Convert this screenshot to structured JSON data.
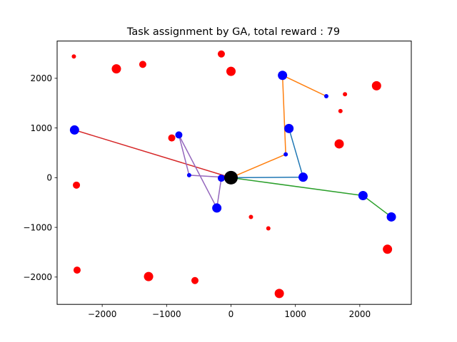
{
  "chart_data": {
    "type": "scatter",
    "title": "Task assignment by GA, total reward : 79",
    "xlabel": "",
    "ylabel": "",
    "xlim": [
      -2700,
      2800
    ],
    "ylim": [
      -2550,
      2750
    ],
    "x_ticks": [
      -2000,
      -1000,
      0,
      1000,
      2000
    ],
    "x_tick_labels": [
      "−2000",
      "−1000",
      "0",
      "1000",
      "2000"
    ],
    "y_ticks": [
      -2000,
      -1000,
      0,
      1000,
      2000
    ],
    "y_tick_labels": [
      "−2000",
      "−1000",
      "0",
      "1000",
      "2000"
    ],
    "grid": false,
    "legend": "none",
    "depot": {
      "x": 0,
      "y": 0,
      "color": "#000000",
      "size": "large"
    },
    "assigned_tasks": {
      "color": "#0000ff",
      "points": [
        {
          "x": 800,
          "y": 2060,
          "size": "large"
        },
        {
          "x": 1480,
          "y": 1640,
          "size": "small"
        },
        {
          "x": 900,
          "y": 990,
          "size": "large"
        },
        {
          "x": 1120,
          "y": 10,
          "size": "large"
        },
        {
          "x": 850,
          "y": 470,
          "size": "small"
        },
        {
          "x": -2430,
          "y": 960,
          "size": "large"
        },
        {
          "x": -810,
          "y": 860,
          "size": "medium"
        },
        {
          "x": -650,
          "y": 50,
          "size": "small"
        },
        {
          "x": -220,
          "y": -610,
          "size": "large"
        },
        {
          "x": -150,
          "y": -10,
          "size": "medium"
        },
        {
          "x": 2050,
          "y": -360,
          "size": "large"
        },
        {
          "x": 2490,
          "y": -790,
          "size": "large"
        }
      ]
    },
    "unassigned_tasks": {
      "color": "#ff0000",
      "points": [
        {
          "x": -2440,
          "y": 2440,
          "size": "small"
        },
        {
          "x": -1780,
          "y": 2190,
          "size": "large"
        },
        {
          "x": -1370,
          "y": 2280,
          "size": "medium"
        },
        {
          "x": -150,
          "y": 2490,
          "size": "medium"
        },
        {
          "x": 0,
          "y": 2140,
          "size": "large"
        },
        {
          "x": 1770,
          "y": 1680,
          "size": "small"
        },
        {
          "x": 2260,
          "y": 1850,
          "size": "large"
        },
        {
          "x": 1700,
          "y": 1340,
          "size": "small"
        },
        {
          "x": 1680,
          "y": 680,
          "size": "large"
        },
        {
          "x": -920,
          "y": 800,
          "size": "medium"
        },
        {
          "x": -2400,
          "y": -150,
          "size": "medium"
        },
        {
          "x": 310,
          "y": -790,
          "size": "small"
        },
        {
          "x": 580,
          "y": -1020,
          "size": "small"
        },
        {
          "x": 2430,
          "y": -1440,
          "size": "large"
        },
        {
          "x": -2390,
          "y": -1860,
          "size": "medium"
        },
        {
          "x": -1280,
          "y": -1990,
          "size": "large"
        },
        {
          "x": -560,
          "y": -2070,
          "size": "medium"
        },
        {
          "x": 750,
          "y": -2330,
          "size": "large"
        }
      ]
    },
    "series": [
      {
        "color": "#1f77b4",
        "x": [
          0,
          1120,
          900
        ],
        "y": [
          0,
          10,
          990
        ]
      },
      {
        "color": "#ff7f0e",
        "x": [
          0,
          850,
          800,
          1480
        ],
        "y": [
          0,
          470,
          2060,
          1640
        ]
      },
      {
        "color": "#2ca02c",
        "x": [
          0,
          2050,
          2490
        ],
        "y": [
          0,
          -360,
          -790
        ]
      },
      {
        "color": "#d62728",
        "x": [
          0,
          -2430
        ],
        "y": [
          0,
          960
        ]
      },
      {
        "color": "#9467bd",
        "x": [
          0,
          -650,
          -810,
          -220,
          -150
        ],
        "y": [
          0,
          50,
          860,
          -610,
          -10
        ]
      }
    ]
  }
}
